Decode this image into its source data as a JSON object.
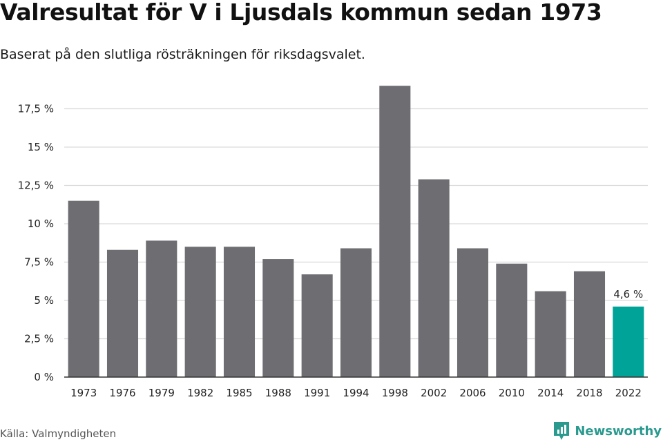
{
  "title": "Valresultat för V i Ljusdals kommun sedan 1973",
  "subtitle": "Baserat på den slutliga rösträkningen för riksdagsvalet.",
  "source": "Källa: Valmyndigheten",
  "brand": {
    "name": "Newsworthy",
    "icon": "newsworthy-logo-icon"
  },
  "colors": {
    "bar": "#6e6d72",
    "highlight": "#00a398",
    "grid": "#d9d9d9",
    "axis": "#333333"
  },
  "chart_data": {
    "type": "bar",
    "title": "Valresultat för V i Ljusdals kommun sedan 1973",
    "subtitle": "Baserat på den slutliga rösträkningen för riksdagsvalet.",
    "xlabel": "",
    "ylabel": "",
    "categories": [
      "1973",
      "1976",
      "1979",
      "1982",
      "1985",
      "1988",
      "1991",
      "1994",
      "1998",
      "2002",
      "2006",
      "2010",
      "2014",
      "2018",
      "2022"
    ],
    "values": [
      11.5,
      8.3,
      8.9,
      8.5,
      8.5,
      7.7,
      6.7,
      8.4,
      19.0,
      12.9,
      8.4,
      7.4,
      5.6,
      6.9,
      4.6
    ],
    "highlight_category": "2022",
    "data_labels": [
      {
        "category": "2022",
        "text": "4,6 %"
      }
    ],
    "ylim": [
      0,
      19
    ],
    "yticks": [
      0,
      2.5,
      5,
      7.5,
      10,
      12.5,
      15,
      17.5
    ],
    "ytick_labels": [
      "0 %",
      "2,5 %",
      "5 %",
      "7,5 %",
      "10 %",
      "12,5 %",
      "15 %",
      "17,5 %"
    ],
    "grid": true,
    "legend": "none"
  }
}
